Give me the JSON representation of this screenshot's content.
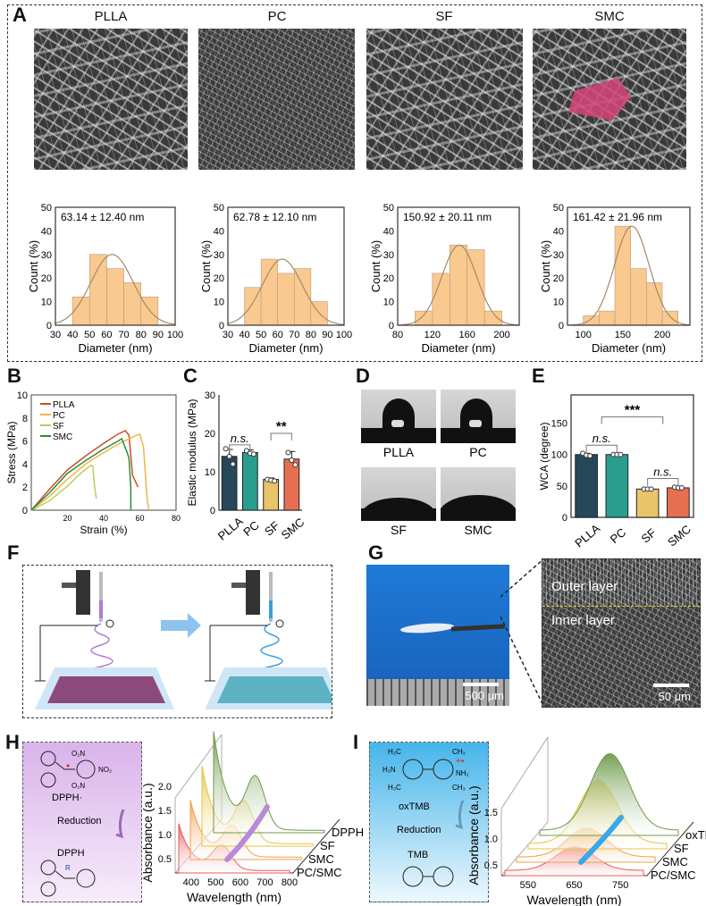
{
  "panels": {
    "A": "A",
    "B": "B",
    "C": "C",
    "D": "D",
    "E": "E",
    "F": "F",
    "G": "G",
    "H": "H",
    "I": "I"
  },
  "panelA": {
    "titles": [
      "PLLA",
      "PC",
      "SF",
      "SMC"
    ],
    "highlight_color": "#d6457a"
  },
  "panelD": {
    "labels": [
      "PLLA",
      "PC",
      "SF",
      "SMC"
    ]
  },
  "panelG": {
    "outer_layer": "Outer layer",
    "inner_layer": "Inner layer",
    "scale_left": "500 μm",
    "scale_right": "50 μm",
    "background_color": "#1a6fd0"
  },
  "panelH": {
    "top_label": "DPPH·",
    "arrow_label": "Reduction",
    "bottom_label": "DPPH",
    "substituent": "R",
    "groups": [
      "O₂N",
      "NO₂",
      "O₂N"
    ],
    "box_color": "#d9b3ea"
  },
  "panelI": {
    "top_label": "oxTMB",
    "arrow_label": "Reduction",
    "bottom_label": "TMB",
    "groups": [
      "H₃C",
      "CH₃",
      "H₂N",
      "NH₂",
      "H₃C",
      "CH₃"
    ],
    "box_color": "#45b5ea"
  },
  "chart_data": [
    {
      "id": "hist-PLLA",
      "type": "bar",
      "title": "",
      "annotation": "63.14 ± 12.40 nm",
      "xlabel": "Diameter (nm)",
      "ylabel": "Count (%)",
      "xlim": [
        30,
        100
      ],
      "ylim": [
        0,
        50
      ],
      "xticks": [
        30,
        40,
        50,
        60,
        70,
        80,
        90,
        100
      ],
      "yticks": [
        0,
        10,
        20,
        30,
        40,
        50
      ],
      "bin_edges": [
        40,
        50,
        60,
        70,
        80,
        90
      ],
      "values": [
        12,
        30,
        24,
        18,
        12
      ],
      "fit": {
        "mean": 63.14,
        "sd": 12.4,
        "peak": 30
      }
    },
    {
      "id": "hist-PC",
      "type": "bar",
      "annotation": "62.78 ± 12.10 nm",
      "xlabel": "Diameter (nm)",
      "ylabel": "Count (%)",
      "xlim": [
        30,
        100
      ],
      "ylim": [
        0,
        50
      ],
      "xticks": [
        30,
        40,
        50,
        60,
        70,
        80,
        90,
        100
      ],
      "yticks": [
        0,
        10,
        20,
        30,
        40,
        50
      ],
      "bin_edges": [
        40,
        50,
        60,
        70,
        80,
        90
      ],
      "values": [
        16,
        28,
        22,
        24,
        10
      ],
      "fit": {
        "mean": 62.78,
        "sd": 12.1,
        "peak": 28
      }
    },
    {
      "id": "hist-SF",
      "type": "bar",
      "annotation": "150.92 ± 20.11 nm",
      "xlabel": "Diameter (nm)",
      "ylabel": "Count (%)",
      "xlim": [
        80,
        220
      ],
      "ylim": [
        0,
        50
      ],
      "xticks": [
        80,
        120,
        160,
        200
      ],
      "yticks": [
        0,
        10,
        20,
        30,
        40,
        50
      ],
      "bin_edges": [
        100,
        120,
        140,
        160,
        180,
        200
      ],
      "values": [
        6,
        22,
        34,
        32,
        6
      ],
      "fit": {
        "mean": 150.92,
        "sd": 20.11,
        "peak": 34
      }
    },
    {
      "id": "hist-SMC",
      "type": "bar",
      "annotation": "161.42 ± 21.96 nm",
      "xlabel": "Diameter (nm)",
      "ylabel": "Count (%)",
      "xlim": [
        80,
        235
      ],
      "ylim": [
        0,
        50
      ],
      "xticks": [
        100,
        150,
        200
      ],
      "yticks": [
        0,
        10,
        20,
        30,
        40,
        50
      ],
      "bin_edges": [
        100,
        120,
        140,
        160,
        180,
        200,
        220
      ],
      "values": [
        4,
        6,
        42,
        24,
        18,
        6
      ],
      "fit": {
        "mean": 161.42,
        "sd": 21.96,
        "peak": 42
      }
    },
    {
      "id": "stress-strain",
      "type": "line",
      "xlabel": "Strain (%)",
      "ylabel": "Stress (MPa)",
      "xlim": [
        0,
        80
      ],
      "ylim": [
        0,
        10
      ],
      "xticks": [
        20,
        40,
        60,
        80
      ],
      "yticks": [
        0,
        2,
        4,
        6,
        8,
        10
      ],
      "legend": "top-left",
      "series": [
        {
          "name": "PLLA",
          "color": "#c8502a",
          "x": [
            0,
            10,
            20,
            30,
            40,
            48,
            52,
            54,
            56,
            59
          ],
          "y": [
            0,
            1.8,
            3.5,
            4.7,
            5.8,
            6.6,
            6.9,
            6.5,
            3.0,
            2.0
          ]
        },
        {
          "name": "PC",
          "color": "#f0b64a",
          "x": [
            0,
            10,
            20,
            30,
            40,
            50,
            58,
            60,
            62,
            64,
            65
          ],
          "y": [
            0,
            1.2,
            2.7,
            4.0,
            5.0,
            5.9,
            6.5,
            6.6,
            5.5,
            1.0,
            0
          ]
        },
        {
          "name": "SF",
          "color": "#b9cf57",
          "x": [
            0,
            10,
            20,
            28,
            33,
            34,
            35,
            36
          ],
          "y": [
            0,
            0.8,
            2.1,
            3.3,
            3.9,
            3.8,
            2.0,
            1.0
          ]
        },
        {
          "name": "SMC",
          "color": "#2e8b3e",
          "x": [
            0,
            10,
            20,
            30,
            40,
            48,
            50,
            53,
            54,
            55,
            55
          ],
          "y": [
            0,
            1.5,
            3.2,
            4.3,
            5.3,
            6.0,
            6.2,
            5.0,
            4.5,
            2,
            0
          ]
        }
      ]
    },
    {
      "id": "elastic-modulus",
      "type": "bar",
      "ylabel": "Elastic modulus (MPa)",
      "ylim": [
        0,
        30
      ],
      "yticks": [
        0,
        10,
        20,
        30
      ],
      "categories": [
        "PLLA",
        "PC",
        "SF",
        "SMC"
      ],
      "values": [
        14,
        15,
        8,
        13.3
      ],
      "errors": [
        1.8,
        0.7,
        0.4,
        2.0
      ],
      "points": [
        [
          16,
          14,
          12
        ],
        [
          15.5,
          14.8,
          14.6
        ],
        [
          8,
          7.8,
          7.6
        ],
        [
          15,
          13,
          11.8
        ]
      ],
      "colors": [
        "#27475a",
        "#2a9d8f",
        "#e9c46a",
        "#e76f51"
      ],
      "significance": [
        {
          "from": 0,
          "to": 1,
          "label": "n.s.",
          "level": 17
        },
        {
          "from": 2,
          "to": 3,
          "label": "**",
          "level": 20
        }
      ]
    },
    {
      "id": "wca",
      "type": "bar",
      "ylabel": "WCA (degree)",
      "ylim": [
        0,
        195
      ],
      "yticks": [
        0,
        50,
        100,
        150
      ],
      "categories": [
        "PLLA",
        "PC",
        "SF",
        "SMC"
      ],
      "values": [
        100,
        100,
        45,
        47
      ],
      "errors": [
        2,
        1,
        1,
        1
      ],
      "points": [
        [
          102,
          99,
          98
        ],
        [
          100,
          100,
          100
        ],
        [
          45,
          45,
          45
        ],
        [
          48,
          47,
          47
        ]
      ],
      "colors": [
        "#27475a",
        "#2a9d8f",
        "#e9c46a",
        "#e76f51"
      ],
      "significance": [
        {
          "from": 0,
          "to": 1,
          "label": "n.s.",
          "level": 115
        },
        {
          "from": 2,
          "to": 3,
          "label": "n.s.",
          "level": 62
        },
        {
          "from": 0.5,
          "to": 2.5,
          "label": "***",
          "level": 160
        }
      ]
    },
    {
      "id": "dpph-spectra",
      "type": "area",
      "xlabel": "Wavelength (nm)",
      "ylabel": "Absorbance (a.u.)",
      "xlim": [
        350,
        800
      ],
      "xticks": [
        400,
        500,
        600,
        700,
        800
      ],
      "yticks": [
        0.5,
        1.0,
        1.5,
        2.0
      ],
      "ylim": [
        0.2,
        2.1
      ],
      "series": [
        {
          "name": "DPPH",
          "color": "#6e9a4a",
          "peak_nm": 520,
          "peak": 1.9
        },
        {
          "name": "SF",
          "color": "#e5c540",
          "peak_nm": 520,
          "peak": 1.5
        },
        {
          "name": "SMC",
          "color": "#f0a050",
          "peak_nm": 520,
          "peak": 1.1
        },
        {
          "name": "PC/SMC",
          "color": "#ee5a5a",
          "peak_nm": 525,
          "peak": 0.9
        }
      ]
    },
    {
      "id": "tmb-spectra",
      "type": "area",
      "xlabel": "Wavelength (nm)",
      "ylabel": "Absorbance (a.u.)",
      "xlim": [
        500,
        800
      ],
      "xticks": [
        550,
        650,
        750
      ],
      "yticks": [
        0.5,
        1.0,
        1.5
      ],
      "ylim": [
        0.3,
        1.9
      ],
      "series": [
        {
          "name": "oxTMB",
          "color": "#6e9a4a",
          "peak_nm": 652,
          "peak": 1.85
        },
        {
          "name": "SF",
          "color": "#e5c540",
          "peak_nm": 652,
          "peak": 1.6
        },
        {
          "name": "SMC",
          "color": "#f0a050",
          "peak_nm": 652,
          "peak": 0.95
        },
        {
          "name": "PC/SMC",
          "color": "#ee5a5a",
          "peak_nm": 652,
          "peak": 0.85
        }
      ]
    }
  ]
}
